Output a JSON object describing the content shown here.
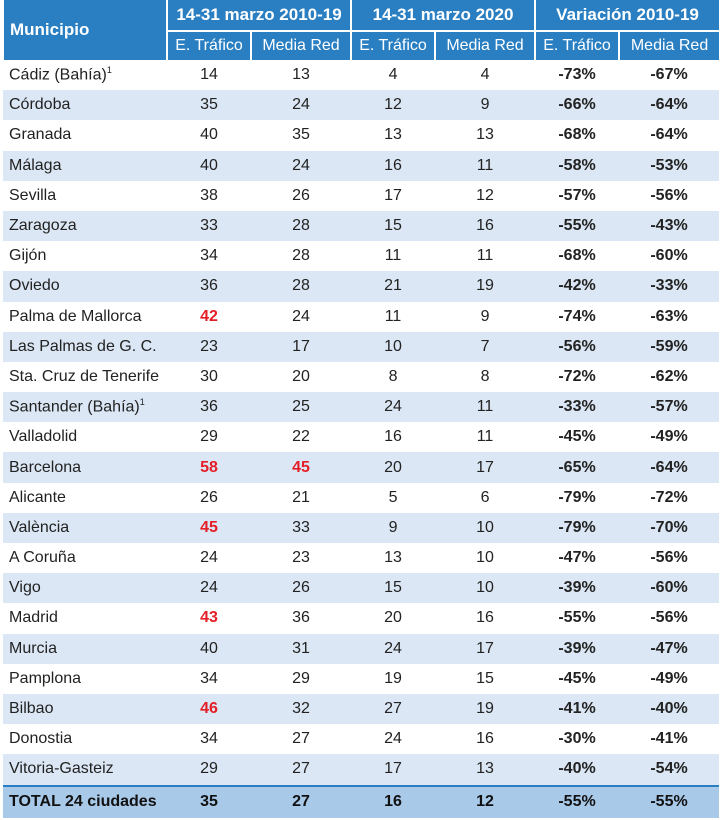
{
  "header": {
    "municipio": "Municipio",
    "group1": "14-31 marzo 2010-19",
    "group2": "14-31 marzo 2020",
    "group3": "Variación 2010-19",
    "sub": [
      "E. Tráfico",
      "Media Red",
      "E. Tráfico",
      "Media Red",
      "E. Tráfico",
      "Media Red"
    ]
  },
  "rows": [
    {
      "name": "Cádiz (Bahía)",
      "note": "1",
      "v": [
        "14",
        "13",
        "4",
        "4",
        "-73%",
        "-67%"
      ]
    },
    {
      "name": "Córdoba",
      "v": [
        "35",
        "24",
        "12",
        "9",
        "-66%",
        "-64%"
      ]
    },
    {
      "name": "Granada",
      "v": [
        "40",
        "35",
        "13",
        "13",
        "-68%",
        "-64%"
      ]
    },
    {
      "name": "Málaga",
      "v": [
        "40",
        "24",
        "16",
        "11",
        "-58%",
        "-53%"
      ]
    },
    {
      "name": "Sevilla",
      "v": [
        "38",
        "26",
        "17",
        "12",
        "-57%",
        "-56%"
      ]
    },
    {
      "name": "Zaragoza",
      "v": [
        "33",
        "28",
        "15",
        "16",
        "-55%",
        "-43%"
      ]
    },
    {
      "name": "Gijón",
      "v": [
        "34",
        "28",
        "11",
        "11",
        "-68%",
        "-60%"
      ]
    },
    {
      "name": "Oviedo",
      "v": [
        "36",
        "28",
        "21",
        "19",
        "-42%",
        "-33%"
      ]
    },
    {
      "name": "Palma de Mallorca",
      "v": [
        "42",
        "24",
        "11",
        "9",
        "-74%",
        "-63%"
      ],
      "hi": [
        0
      ]
    },
    {
      "name": "Las Palmas de G. C.",
      "v": [
        "23",
        "17",
        "10",
        "7",
        "-56%",
        "-59%"
      ]
    },
    {
      "name": "Sta. Cruz de Tenerife",
      "v": [
        "30",
        "20",
        "8",
        "8",
        "-72%",
        "-62%"
      ]
    },
    {
      "name": "Santander (Bahía)",
      "note": "1",
      "v": [
        "36",
        "25",
        "24",
        "11",
        "-33%",
        "-57%"
      ]
    },
    {
      "name": "Valladolid",
      "v": [
        "29",
        "22",
        "16",
        "11",
        "-45%",
        "-49%"
      ]
    },
    {
      "name": "Barcelona",
      "v": [
        "58",
        "45",
        "20",
        "17",
        "-65%",
        "-64%"
      ],
      "hi": [
        0,
        1
      ]
    },
    {
      "name": "Alicante",
      "v": [
        "26",
        "21",
        "5",
        "6",
        "-79%",
        "-72%"
      ]
    },
    {
      "name": "València",
      "v": [
        "45",
        "33",
        "9",
        "10",
        "-79%",
        "-70%"
      ],
      "hi": [
        0
      ]
    },
    {
      "name": "A Coruña",
      "v": [
        "24",
        "23",
        "13",
        "10",
        "-47%",
        "-56%"
      ]
    },
    {
      "name": "Vigo",
      "v": [
        "24",
        "26",
        "15",
        "10",
        "-39%",
        "-60%"
      ]
    },
    {
      "name": "Madrid",
      "v": [
        "43",
        "36",
        "20",
        "16",
        "-55%",
        "-56%"
      ],
      "hi": [
        0
      ]
    },
    {
      "name": "Murcia",
      "v": [
        "40",
        "31",
        "24",
        "17",
        "-39%",
        "-47%"
      ]
    },
    {
      "name": "Pamplona",
      "v": [
        "34",
        "29",
        "19",
        "15",
        "-45%",
        "-49%"
      ]
    },
    {
      "name": "Bilbao",
      "v": [
        "46",
        "32",
        "27",
        "19",
        "-41%",
        "-40%"
      ],
      "hi": [
        0
      ]
    },
    {
      "name": "Donostia",
      "v": [
        "34",
        "27",
        "24",
        "16",
        "-30%",
        "-41%"
      ]
    },
    {
      "name": "Vitoria-Gasteiz",
      "v": [
        "29",
        "27",
        "17",
        "13",
        "-40%",
        "-54%"
      ]
    }
  ],
  "total": {
    "name": "TOTAL 24 ciudades",
    "v": [
      "35",
      "27",
      "16",
      "12",
      "-55%",
      "-55%"
    ]
  },
  "colors": {
    "header": "#2a7fc2",
    "stripe": "#dbe7f4",
    "total": "#a8c9e8",
    "highlight": "#e41e26"
  }
}
